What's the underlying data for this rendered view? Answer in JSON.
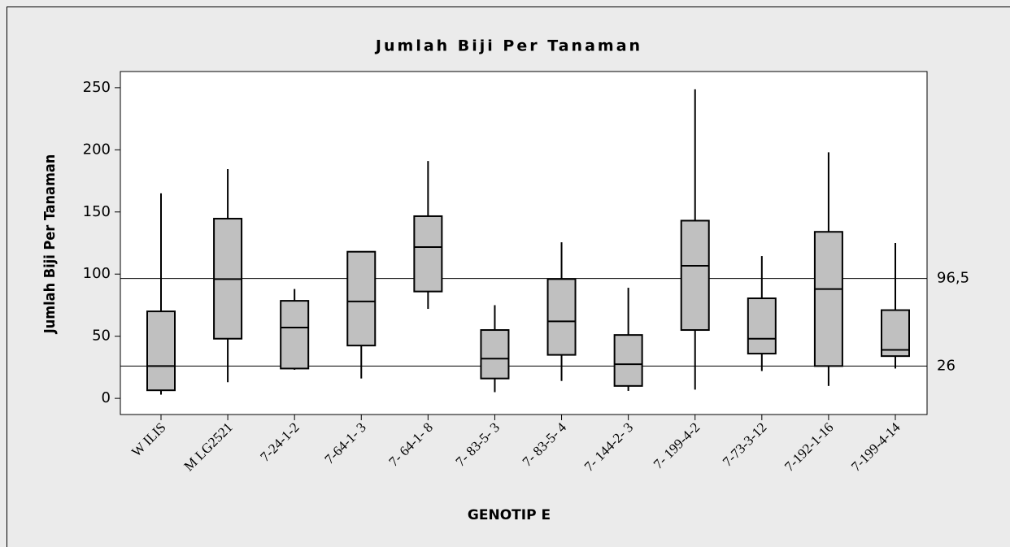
{
  "chart_data": {
    "type": "box",
    "title": "Jumlah Biji Per Tanaman",
    "x_label": "GENOTIP E",
    "y_label": "Jumlah Biji Per Tanaman",
    "categories": [
      "W ILIS",
      "M LG2521",
      "7-24-1-2",
      "7-64-1- 3",
      "7- 64-1- 8",
      "7- 83-5- 3",
      "7- 83-5- 4",
      "7- 144-2- 3",
      "7- 199-4-2",
      "7-73-3-12",
      "7-192-1-16",
      "7-199-4-14"
    ],
    "whisker_low": [
      3,
      13,
      23,
      16,
      72,
      5,
      14,
      6,
      7,
      22,
      10,
      24
    ],
    "q1": [
      6.5,
      48,
      24,
      42.5,
      86,
      16,
      35,
      10,
      55,
      36,
      26,
      34
    ],
    "median": [
      26,
      96,
      57,
      78,
      121.7,
      32,
      62,
      27.5,
      106.7,
      48,
      88,
      39
    ],
    "q3": [
      70,
      144.6,
      78.5,
      118,
      146.6,
      55,
      96,
      51,
      143,
      80.5,
      134,
      71
    ],
    "whisker_high": [
      165,
      184.5,
      88,
      118,
      191,
      75,
      125.6,
      89,
      248.7,
      114.5,
      198,
      125
    ],
    "color": "#c0c0c0",
    "ylim": [
      -13,
      263
    ],
    "yticks": [
      0,
      50,
      100,
      150,
      200,
      250
    ],
    "reference_lines": [
      {
        "value": 96.5,
        "label": "96,5"
      },
      {
        "value": 26,
        "label": "26"
      }
    ]
  }
}
